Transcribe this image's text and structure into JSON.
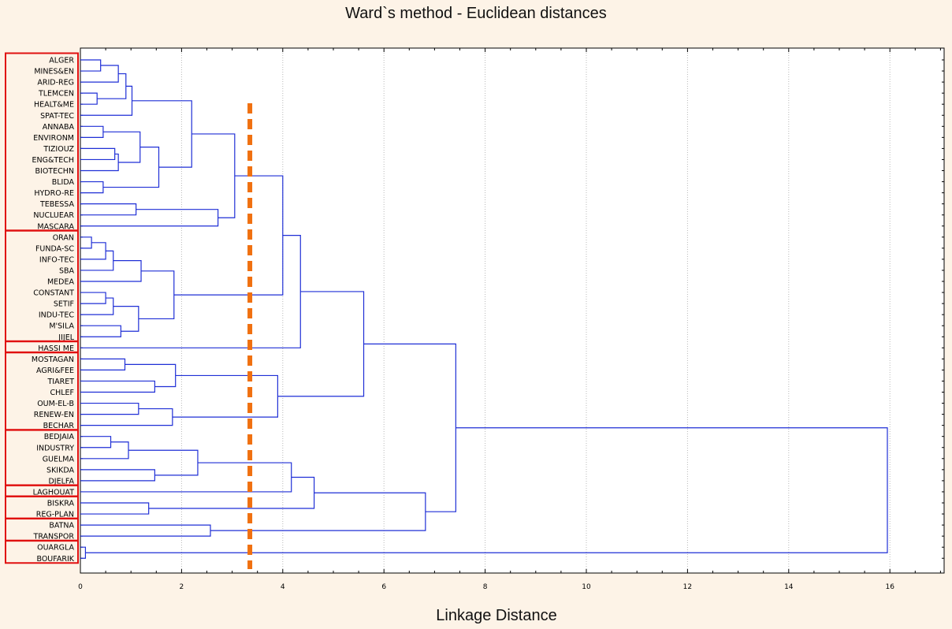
{
  "chart_data": {
    "type": "dendrogram",
    "title": "Ward`s method - Euclidean distances",
    "xlabel": "Linkage Distance",
    "xlim": [
      0,
      16
    ],
    "xticks": [
      0,
      2,
      4,
      6,
      8,
      10,
      12,
      14,
      16
    ],
    "grid": "vertical dotted",
    "colors": {
      "links": "#1f2fd6",
      "cut_line": "#f07010",
      "group_boxes": "#e01010"
    },
    "cut_height": 3.35,
    "leaves": [
      "ALGER",
      "MINES&EN",
      "ARID-REG",
      "TLEMCEN",
      "HEALT&ME",
      "SPAT-TEC",
      "ANNABA",
      "ENVIRONM",
      "TIZIOUZ",
      "ENG&TECH",
      "BIOTECHN",
      "BLIDA",
      "HYDRO-RE",
      "TEBESSA",
      "NUCLUEAR",
      "MASCARA",
      "ORAN",
      "FUNDA-SC",
      "INFO-TEC",
      "SBA",
      "MEDEA",
      "CONSTANT",
      "SETIF",
      "INDU-TEC",
      "M'SILA",
      "JIJEL",
      "HASSI ME",
      "MOSTAGAN",
      "AGRI&FEE",
      "TIARET",
      "CHLEF",
      "OUM-EL-B",
      "RENEW-EN",
      "BECHAR",
      "BEDJAIA",
      "INDUSTRY",
      "GUELMA",
      "SKIKDA",
      "DJELFA",
      "LAGHOUAT",
      "BISKRA",
      "REG-PLAN",
      "BATNA",
      "TRANSPOR",
      "OUARGLA",
      "BOUFARIK"
    ],
    "merges": [
      {
        "a": "L0",
        "b": "L1",
        "h": 0.4
      },
      {
        "a": "L3",
        "b": "L4",
        "h": 0.33
      },
      {
        "a": "M0",
        "b": "L2",
        "h": 0.75
      },
      {
        "a": "M2",
        "b": "M1",
        "h": 0.9
      },
      {
        "a": "M3",
        "b": "L5",
        "h": 1.02
      },
      {
        "a": "L6",
        "b": "L7",
        "h": 0.45
      },
      {
        "a": "L8",
        "b": "L9",
        "h": 0.68
      },
      {
        "a": "M6",
        "b": "L10",
        "h": 0.75
      },
      {
        "a": "M5",
        "b": "M7",
        "h": 1.18
      },
      {
        "a": "L11",
        "b": "L12",
        "h": 0.45
      },
      {
        "a": "M8",
        "b": "M9",
        "h": 1.55
      },
      {
        "a": "M4",
        "b": "M10",
        "h": 2.2
      },
      {
        "a": "L13",
        "b": "L14",
        "h": 1.1
      },
      {
        "a": "M12",
        "b": "L15",
        "h": 2.72
      },
      {
        "a": "M11",
        "b": "M13",
        "h": 3.05
      },
      {
        "a": "L16",
        "b": "L17",
        "h": 0.22
      },
      {
        "a": "M15",
        "b": "L18",
        "h": 0.5
      },
      {
        "a": "M16",
        "b": "L19",
        "h": 0.65
      },
      {
        "a": "M17",
        "b": "L20",
        "h": 1.2
      },
      {
        "a": "L21",
        "b": "L22",
        "h": 0.5
      },
      {
        "a": "M19",
        "b": "L23",
        "h": 0.65
      },
      {
        "a": "L24",
        "b": "L25",
        "h": 0.8
      },
      {
        "a": "M20",
        "b": "M21",
        "h": 1.15
      },
      {
        "a": "M18",
        "b": "M22",
        "h": 1.85
      },
      {
        "a": "M14",
        "b": "M23",
        "h": 4.0
      },
      {
        "a": "M24",
        "b": "L26",
        "h": 4.35
      },
      {
        "a": "L27",
        "b": "L28",
        "h": 0.88
      },
      {
        "a": "L29",
        "b": "L30",
        "h": 1.47
      },
      {
        "a": "M26",
        "b": "M27",
        "h": 1.88
      },
      {
        "a": "L31",
        "b": "L32",
        "h": 1.15
      },
      {
        "a": "M29",
        "b": "L33",
        "h": 1.82
      },
      {
        "a": "M28",
        "b": "M30",
        "h": 3.9
      },
      {
        "a": "M25",
        "b": "M31",
        "h": 5.6
      },
      {
        "a": "L34",
        "b": "L35",
        "h": 0.6
      },
      {
        "a": "M33",
        "b": "L36",
        "h": 0.95
      },
      {
        "a": "L37",
        "b": "L38",
        "h": 1.47
      },
      {
        "a": "M34",
        "b": "M35",
        "h": 2.32
      },
      {
        "a": "M36",
        "b": "L39",
        "h": 4.17
      },
      {
        "a": "L40",
        "b": "L41",
        "h": 1.35
      },
      {
        "a": "M37",
        "b": "M38",
        "h": 4.62
      },
      {
        "a": "L42",
        "b": "L43",
        "h": 2.57
      },
      {
        "a": "M39",
        "b": "M40",
        "h": 6.82
      },
      {
        "a": "M32",
        "b": "M41",
        "h": 7.42
      },
      {
        "a": "L44",
        "b": "L45",
        "h": 0.1
      },
      {
        "a": "M42",
        "b": "M43",
        "h": 15.95
      }
    ],
    "group_boxes": [
      {
        "from": 0,
        "to": 15
      },
      {
        "from": 16,
        "to": 25
      },
      {
        "from": 26,
        "to": 26
      },
      {
        "from": 27,
        "to": 33
      },
      {
        "from": 34,
        "to": 38
      },
      {
        "from": 39,
        "to": 39
      },
      {
        "from": 40,
        "to": 41
      },
      {
        "from": 42,
        "to": 43
      },
      {
        "from": 44,
        "to": 45
      }
    ]
  }
}
